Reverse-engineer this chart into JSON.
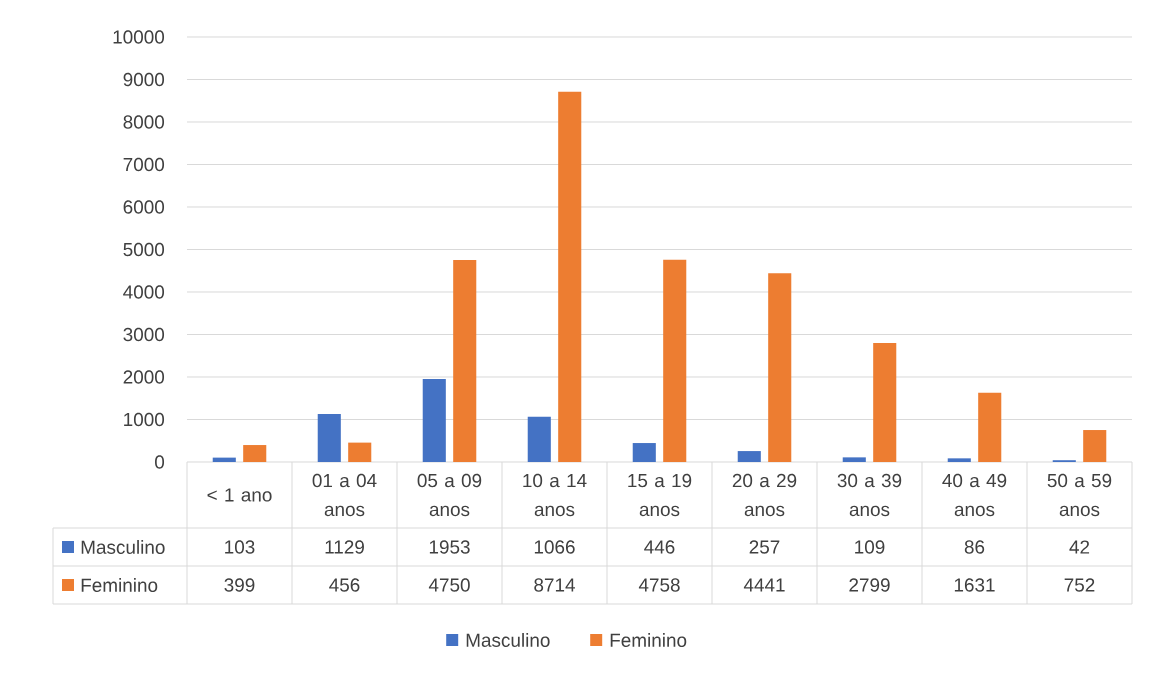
{
  "chart_data": {
    "type": "bar",
    "categories": [
      "< 1 ano",
      "01 a 04 anos",
      "05 a 09 anos",
      "10 a 14 anos",
      "15 a 19 anos",
      "20 a 29 anos",
      "30 a 39 anos",
      "40 a 49 anos",
      "50 a 59 anos"
    ],
    "series": [
      {
        "name": "Masculino",
        "color": "#4472c4",
        "values": [
          103,
          1129,
          1953,
          1066,
          446,
          257,
          109,
          86,
          42
        ]
      },
      {
        "name": "Feminino",
        "color": "#ed7d31",
        "values": [
          399,
          456,
          4750,
          8714,
          4758,
          4441,
          2799,
          1631,
          752
        ]
      }
    ],
    "ylim": [
      0,
      10000
    ],
    "yticks": [
      0,
      1000,
      2000,
      3000,
      4000,
      5000,
      6000,
      7000,
      8000,
      9000,
      10000
    ],
    "grid": "y",
    "legend": "bottom",
    "data_labels": true
  }
}
